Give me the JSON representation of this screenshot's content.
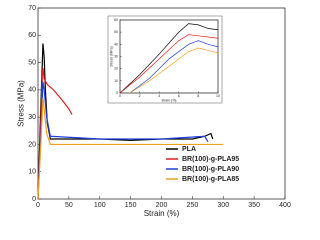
{
  "chart_data": [
    {
      "type": "line",
      "xlabel": "Strain (%)",
      "ylabel": "Stress (MPa)",
      "xlim": [
        0,
        400
      ],
      "xticks": [
        0,
        50,
        100,
        150,
        200,
        250,
        300,
        350,
        400
      ],
      "ylim": [
        0,
        70
      ],
      "yticks": [
        0,
        10,
        20,
        30,
        40,
        50,
        60,
        70
      ],
      "legend": "lower right",
      "series": [
        {
          "name": "PLA",
          "color": "#000000",
          "x": [
            0,
            4,
            7,
            8,
            10,
            12,
            15,
            20,
            50,
            100,
            150,
            200,
            250,
            270,
            280,
            283
          ],
          "values": [
            0,
            30,
            50,
            57,
            52,
            40,
            28,
            22,
            22,
            22,
            21.5,
            22,
            22,
            23,
            24,
            22
          ]
        },
        {
          "name": "BR(100)-g-PLA95",
          "color": "#e02020",
          "x": [
            0,
            4,
            7,
            8,
            10,
            15,
            25,
            40,
            50,
            55
          ],
          "values": [
            0,
            25,
            45,
            48,
            44,
            42,
            40,
            36,
            33,
            31
          ]
        },
        {
          "name": "BR(100)-g-PLA90",
          "color": "#2040e0",
          "x": [
            0,
            5,
            8,
            10,
            14,
            20,
            100,
            200,
            270,
            275
          ],
          "values": [
            0,
            25,
            43,
            40,
            30,
            23,
            22,
            22,
            23,
            21
          ]
        },
        {
          "name": "BR(100)-g-PLA85",
          "color": "#f0a020",
          "x": [
            0,
            5,
            8,
            10,
            14,
            20,
            100,
            200,
            250,
            280,
            300
          ],
          "values": [
            0,
            22,
            37,
            33,
            24,
            20,
            20,
            20,
            20,
            20,
            20
          ]
        }
      ]
    },
    {
      "type": "line",
      "xlabel": "strain (%)",
      "ylabel": "Stress (MPa)",
      "xlim": [
        0,
        10
      ],
      "xticks": [
        0,
        2,
        4,
        6,
        8,
        10
      ],
      "ylim": [
        0,
        60
      ],
      "yticks": [
        0,
        10,
        20,
        30,
        40,
        50,
        60
      ],
      "series": [
        {
          "color": "#000000",
          "x": [
            0,
            2,
            4,
            6,
            7,
            8,
            9,
            10
          ],
          "values": [
            0,
            15,
            32,
            50,
            57,
            56,
            53,
            52
          ]
        },
        {
          "color": "#e02020",
          "x": [
            0,
            2,
            4,
            6,
            7,
            8,
            9,
            10
          ],
          "values": [
            0,
            13,
            28,
            43,
            48,
            47,
            46,
            45
          ]
        },
        {
          "color": "#2040e0",
          "x": [
            1,
            3,
            5,
            7,
            8,
            9,
            10
          ],
          "values": [
            0,
            12,
            28,
            40,
            43,
            40,
            38
          ]
        },
        {
          "color": "#f0a020",
          "x": [
            1,
            3,
            5,
            7,
            8,
            9,
            10
          ],
          "values": [
            0,
            10,
            22,
            34,
            37,
            35,
            33
          ]
        }
      ]
    }
  ]
}
